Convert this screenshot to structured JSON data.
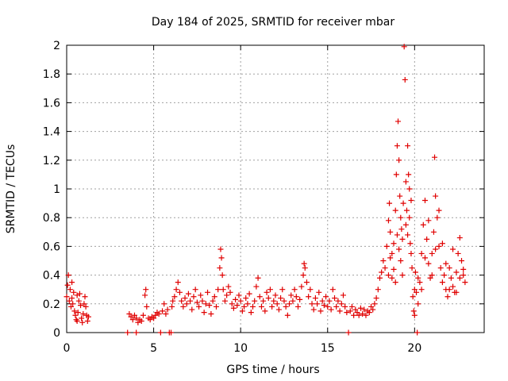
{
  "chart_data": {
    "type": "scatter",
    "title": "Day 184 of 2025, SRMTID for receiver mbar",
    "xlabel": "GPS time / hours",
    "ylabel": "SRMTID / TECUs",
    "xlim": [
      0,
      24
    ],
    "ylim": [
      0,
      2
    ],
    "xticks": [
      0,
      5,
      10,
      15,
      20
    ],
    "yticks": [
      0,
      0.2,
      0.4,
      0.6,
      0.8,
      1,
      1.2,
      1.4,
      1.6,
      1.8,
      2
    ],
    "grid": true,
    "marker": "+",
    "color": "#e00000",
    "series": [
      {
        "name": "SRMTID",
        "points": [
          [
            0.0,
            0.25
          ],
          [
            0.05,
            0.33
          ],
          [
            0.1,
            0.4
          ],
          [
            0.15,
            0.22
          ],
          [
            0.2,
            0.3
          ],
          [
            0.25,
            0.18
          ],
          [
            0.3,
            0.24
          ],
          [
            0.35,
            0.2
          ],
          [
            0.4,
            0.28
          ],
          [
            0.45,
            0.15
          ],
          [
            0.5,
            0.12
          ],
          [
            0.55,
            0.09
          ],
          [
            0.6,
            0.08
          ],
          [
            0.65,
            0.14
          ],
          [
            0.7,
            0.22
          ],
          [
            0.75,
            0.27
          ],
          [
            0.8,
            0.19
          ],
          [
            0.85,
            0.1
          ],
          [
            0.9,
            0.07
          ],
          [
            0.95,
            0.13
          ],
          [
            1.0,
            0.2
          ],
          [
            1.05,
            0.25
          ],
          [
            1.1,
            0.18
          ],
          [
            1.15,
            0.12
          ],
          [
            1.2,
            0.08
          ],
          [
            1.25,
            0.11
          ],
          [
            0.3,
            0.35
          ],
          [
            0.6,
            0.26
          ],
          [
            3.5,
            0.0
          ],
          [
            3.6,
            0.13
          ],
          [
            3.7,
            0.11
          ],
          [
            3.8,
            0.09
          ],
          [
            3.9,
            0.12
          ],
          [
            4.0,
            0.0
          ],
          [
            4.0,
            0.1
          ],
          [
            4.1,
            0.07
          ],
          [
            4.2,
            0.09
          ],
          [
            4.3,
            0.08
          ],
          [
            4.4,
            0.12
          ],
          [
            4.5,
            0.26
          ],
          [
            4.55,
            0.3
          ],
          [
            4.6,
            0.18
          ],
          [
            4.7,
            0.1
          ],
          [
            4.8,
            0.09
          ],
          [
            4.9,
            0.11
          ],
          [
            5.0,
            0.1
          ],
          [
            5.1,
            0.12
          ],
          [
            5.2,
            0.14
          ],
          [
            5.3,
            0.13
          ],
          [
            5.4,
            0.0
          ],
          [
            5.5,
            0.15
          ],
          [
            5.6,
            0.2
          ],
          [
            5.7,
            0.13
          ],
          [
            5.8,
            0.16
          ],
          [
            5.9,
            0.0
          ],
          [
            6.0,
            0.0
          ],
          [
            6.05,
            0.18
          ],
          [
            6.1,
            0.22
          ],
          [
            6.2,
            0.25
          ],
          [
            6.3,
            0.3
          ],
          [
            6.4,
            0.35
          ],
          [
            6.5,
            0.28
          ],
          [
            6.6,
            0.22
          ],
          [
            6.7,
            0.18
          ],
          [
            6.8,
            0.24
          ],
          [
            6.9,
            0.2
          ],
          [
            7.0,
            0.27
          ],
          [
            7.1,
            0.22
          ],
          [
            7.2,
            0.16
          ],
          [
            7.3,
            0.25
          ],
          [
            7.4,
            0.3
          ],
          [
            7.5,
            0.21
          ],
          [
            7.6,
            0.18
          ],
          [
            7.7,
            0.26
          ],
          [
            7.8,
            0.22
          ],
          [
            7.9,
            0.14
          ],
          [
            8.0,
            0.2
          ],
          [
            8.1,
            0.28
          ],
          [
            8.2,
            0.19
          ],
          [
            8.3,
            0.13
          ],
          [
            8.4,
            0.22
          ],
          [
            8.5,
            0.25
          ],
          [
            8.6,
            0.18
          ],
          [
            8.7,
            0.3
          ],
          [
            8.8,
            0.45
          ],
          [
            8.85,
            0.58
          ],
          [
            8.9,
            0.52
          ],
          [
            8.95,
            0.4
          ],
          [
            9.0,
            0.3
          ],
          [
            9.1,
            0.22
          ],
          [
            9.2,
            0.26
          ],
          [
            9.3,
            0.32
          ],
          [
            9.4,
            0.28
          ],
          [
            9.5,
            0.2
          ],
          [
            9.6,
            0.17
          ],
          [
            9.7,
            0.23
          ],
          [
            9.8,
            0.19
          ],
          [
            9.9,
            0.26
          ],
          [
            10.0,
            0.22
          ],
          [
            10.1,
            0.15
          ],
          [
            10.2,
            0.18
          ],
          [
            10.3,
            0.24
          ],
          [
            10.4,
            0.2
          ],
          [
            10.5,
            0.27
          ],
          [
            10.6,
            0.14
          ],
          [
            10.7,
            0.18
          ],
          [
            10.8,
            0.22
          ],
          [
            10.9,
            0.32
          ],
          [
            11.0,
            0.38
          ],
          [
            11.1,
            0.25
          ],
          [
            11.2,
            0.18
          ],
          [
            11.3,
            0.22
          ],
          [
            11.4,
            0.15
          ],
          [
            11.5,
            0.28
          ],
          [
            11.6,
            0.24
          ],
          [
            11.7,
            0.3
          ],
          [
            11.8,
            0.18
          ],
          [
            11.9,
            0.22
          ],
          [
            12.0,
            0.26
          ],
          [
            12.1,
            0.2
          ],
          [
            12.2,
            0.16
          ],
          [
            12.3,
            0.24
          ],
          [
            12.4,
            0.3
          ],
          [
            12.5,
            0.22
          ],
          [
            12.6,
            0.18
          ],
          [
            12.7,
            0.12
          ],
          [
            12.8,
            0.2
          ],
          [
            12.9,
            0.26
          ],
          [
            13.0,
            0.22
          ],
          [
            13.1,
            0.3
          ],
          [
            13.2,
            0.25
          ],
          [
            13.3,
            0.18
          ],
          [
            13.4,
            0.23
          ],
          [
            13.5,
            0.32
          ],
          [
            13.6,
            0.4
          ],
          [
            13.65,
            0.48
          ],
          [
            13.7,
            0.45
          ],
          [
            13.8,
            0.35
          ],
          [
            13.9,
            0.25
          ],
          [
            14.0,
            0.3
          ],
          [
            14.1,
            0.2
          ],
          [
            14.2,
            0.16
          ],
          [
            14.3,
            0.24
          ],
          [
            14.4,
            0.2
          ],
          [
            14.5,
            0.28
          ],
          [
            14.6,
            0.15
          ],
          [
            14.7,
            0.22
          ],
          [
            14.8,
            0.19
          ],
          [
            14.9,
            0.25
          ],
          [
            15.0,
            0.18
          ],
          [
            15.1,
            0.22
          ],
          [
            15.2,
            0.16
          ],
          [
            15.3,
            0.3
          ],
          [
            15.4,
            0.24
          ],
          [
            15.5,
            0.18
          ],
          [
            15.6,
            0.22
          ],
          [
            15.7,
            0.15
          ],
          [
            15.8,
            0.2
          ],
          [
            15.9,
            0.26
          ],
          [
            16.0,
            0.18
          ],
          [
            16.1,
            0.14
          ],
          [
            16.2,
            0.0
          ],
          [
            16.3,
            0.15
          ],
          [
            16.4,
            0.18
          ],
          [
            16.5,
            0.12
          ],
          [
            16.6,
            0.16
          ],
          [
            16.7,
            0.14
          ],
          [
            16.8,
            0.12
          ],
          [
            16.9,
            0.17
          ],
          [
            17.0,
            0.13
          ],
          [
            17.1,
            0.16
          ],
          [
            17.2,
            0.12
          ],
          [
            17.3,
            0.15
          ],
          [
            17.4,
            0.14
          ],
          [
            17.5,
            0.18
          ],
          [
            17.6,
            0.16
          ],
          [
            17.7,
            0.2
          ],
          [
            17.8,
            0.24
          ],
          [
            17.9,
            0.3
          ],
          [
            18.0,
            0.38
          ],
          [
            18.1,
            0.42
          ],
          [
            18.2,
            0.5
          ],
          [
            18.3,
            0.45
          ],
          [
            18.4,
            0.6
          ],
          [
            18.5,
            0.78
          ],
          [
            18.55,
            0.9
          ],
          [
            18.6,
            0.7
          ],
          [
            18.7,
            0.55
          ],
          [
            18.8,
            0.62
          ],
          [
            18.9,
            0.85
          ],
          [
            18.95,
            1.1
          ],
          [
            19.0,
            1.3
          ],
          [
            19.05,
            1.47
          ],
          [
            19.1,
            1.2
          ],
          [
            19.15,
            0.95
          ],
          [
            19.2,
            0.8
          ],
          [
            19.25,
            0.72
          ],
          [
            19.3,
            0.65
          ],
          [
            19.35,
            0.9
          ],
          [
            19.4,
            1.99
          ],
          [
            19.45,
            1.76
          ],
          [
            19.5,
            1.05
          ],
          [
            19.55,
            0.85
          ],
          [
            19.6,
            1.3
          ],
          [
            19.65,
            1.1
          ],
          [
            19.7,
            0.8
          ],
          [
            19.75,
            0.62
          ],
          [
            19.8,
            0.55
          ],
          [
            19.85,
            0.45
          ],
          [
            19.9,
            0.25
          ],
          [
            19.95,
            0.15
          ],
          [
            20.0,
            0.3
          ],
          [
            20.05,
            0.42
          ],
          [
            20.1,
            0.28
          ],
          [
            20.15,
            0.0
          ],
          [
            20.2,
            0.2
          ],
          [
            20.3,
            0.35
          ],
          [
            20.4,
            0.55
          ],
          [
            20.5,
            0.75
          ],
          [
            20.6,
            0.92
          ],
          [
            20.7,
            0.65
          ],
          [
            20.8,
            0.48
          ],
          [
            20.9,
            0.38
          ],
          [
            21.0,
            0.55
          ],
          [
            21.1,
            0.7
          ],
          [
            21.15,
            1.22
          ],
          [
            21.2,
            0.95
          ],
          [
            21.3,
            0.8
          ],
          [
            21.4,
            0.6
          ],
          [
            21.5,
            0.45
          ],
          [
            21.6,
            0.35
          ],
          [
            21.7,
            0.4
          ],
          [
            21.8,
            0.3
          ],
          [
            21.9,
            0.25
          ],
          [
            22.0,
            0.45
          ],
          [
            22.1,
            0.38
          ],
          [
            22.2,
            0.32
          ],
          [
            22.3,
            0.28
          ],
          [
            22.4,
            0.42
          ],
          [
            22.5,
            0.55
          ],
          [
            22.6,
            0.66
          ],
          [
            22.7,
            0.5
          ],
          [
            22.8,
            0.4
          ],
          [
            22.9,
            0.35
          ],
          [
            18.5,
            0.4
          ],
          [
            18.6,
            0.52
          ],
          [
            18.7,
            0.38
          ],
          [
            18.8,
            0.44
          ],
          [
            18.9,
            0.35
          ],
          [
            19.0,
            0.68
          ],
          [
            19.1,
            0.58
          ],
          [
            19.2,
            0.5
          ],
          [
            19.3,
            0.4
          ],
          [
            19.5,
            0.75
          ],
          [
            19.6,
            0.68
          ],
          [
            19.7,
            1.0
          ],
          [
            19.8,
            0.92
          ],
          [
            20.0,
            0.12
          ],
          [
            20.2,
            0.38
          ],
          [
            20.4,
            0.3
          ],
          [
            20.6,
            0.52
          ],
          [
            20.8,
            0.78
          ],
          [
            21.0,
            0.4
          ],
          [
            21.2,
            0.58
          ],
          [
            21.4,
            0.85
          ],
          [
            21.6,
            0.62
          ],
          [
            21.8,
            0.48
          ],
          [
            22.0,
            0.3
          ],
          [
            22.2,
            0.58
          ],
          [
            22.4,
            0.28
          ],
          [
            22.6,
            0.38
          ],
          [
            22.8,
            0.44
          ]
        ]
      }
    ]
  }
}
